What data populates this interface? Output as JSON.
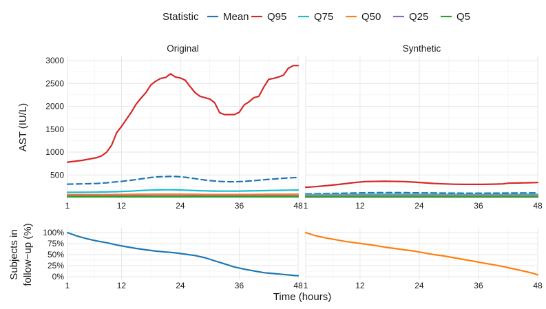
{
  "legend": {
    "title": "Statistic",
    "items": [
      {
        "name": "Mean",
        "color": "#1f77b4"
      },
      {
        "name": "Q95",
        "color": "#d62728"
      },
      {
        "name": "Q75",
        "color": "#17becf"
      },
      {
        "name": "Q50",
        "color": "#ff7f0e"
      },
      {
        "name": "Q25",
        "color": "#9467bd"
      },
      {
        "name": "Q5",
        "color": "#2ca02c"
      }
    ]
  },
  "xlabel": "Time (hours)",
  "chart_data": [
    {
      "type": "line",
      "panel": "Original",
      "title": "Original",
      "ylabel": "AST (IU/L)",
      "xlim": [
        1,
        48
      ],
      "ylim": [
        0,
        3000
      ],
      "xticks": [
        1,
        12,
        24,
        36,
        48
      ],
      "yticks": [
        500,
        1000,
        1500,
        2000,
        2500,
        3000
      ],
      "x": [
        1,
        4,
        7,
        8,
        9,
        10,
        11,
        12,
        14,
        15,
        16,
        17,
        18,
        19,
        20,
        21,
        22,
        23,
        24,
        25,
        26,
        27,
        28,
        29,
        30,
        31,
        32,
        33,
        34,
        35,
        36,
        37,
        38,
        39,
        40,
        41,
        42,
        43,
        44,
        45,
        46,
        47,
        48
      ],
      "series": [
        {
          "name": "Q95",
          "color": "#d62728",
          "dash": false,
          "values": [
            780,
            820,
            880,
            920,
            1000,
            1150,
            1420,
            1560,
            1870,
            2050,
            2180,
            2300,
            2470,
            2550,
            2610,
            2630,
            2710,
            2640,
            2620,
            2570,
            2430,
            2300,
            2220,
            2190,
            2160,
            2080,
            1860,
            1820,
            1820,
            1820,
            1870,
            2030,
            2100,
            2190,
            2220,
            2420,
            2590,
            2610,
            2640,
            2680,
            2830,
            2890,
            2890
          ]
        },
        {
          "name": "Mean",
          "color": "#1f77b4",
          "dash": true,
          "values": [
            300,
            305,
            315,
            322,
            330,
            340,
            350,
            360,
            385,
            400,
            415,
            430,
            445,
            455,
            462,
            465,
            468,
            466,
            460,
            450,
            436,
            420,
            405,
            390,
            378,
            368,
            360,
            355,
            352,
            352,
            355,
            360,
            368,
            376,
            385,
            395,
            405,
            412,
            420,
            428,
            435,
            440,
            445
          ]
        },
        {
          "name": "Q75",
          "color": "#17becf",
          "dash": false,
          "values": [
            120,
            122,
            125,
            128,
            130,
            133,
            136,
            140,
            148,
            155,
            160,
            165,
            170,
            172,
            175,
            176,
            176,
            175,
            172,
            168,
            164,
            160,
            157,
            154,
            151,
            149,
            148,
            147,
            147,
            147,
            148,
            150,
            152,
            154,
            156,
            158,
            160,
            162,
            164,
            166,
            168,
            170,
            172
          ]
        },
        {
          "name": "Q50",
          "color": "#ff7f0e",
          "dash": false,
          "values": [
            70,
            70,
            71,
            71,
            72,
            72,
            73,
            74,
            75,
            76,
            77,
            78,
            79,
            80,
            80,
            80,
            80,
            80,
            79,
            78,
            77,
            76,
            75,
            74,
            74,
            73,
            73,
            73,
            73,
            73,
            73,
            74,
            74,
            75,
            75,
            76,
            76,
            77,
            77,
            78,
            78,
            79,
            79
          ]
        },
        {
          "name": "Q25",
          "color": "#9467bd",
          "dash": false,
          "values": [
            42,
            42,
            42,
            42,
            43,
            43,
            43,
            43,
            44,
            44,
            44,
            45,
            45,
            45,
            45,
            45,
            45,
            45,
            45,
            44,
            44,
            44,
            44,
            43,
            43,
            43,
            43,
            43,
            43,
            43,
            43,
            43,
            43,
            44,
            44,
            44,
            44,
            44,
            44,
            45,
            45,
            45,
            45
          ]
        },
        {
          "name": "Q5",
          "color": "#2ca02c",
          "dash": false,
          "values": [
            22,
            22,
            22,
            22,
            22,
            22,
            22,
            22,
            23,
            23,
            23,
            23,
            23,
            23,
            23,
            23,
            23,
            23,
            23,
            23,
            23,
            23,
            23,
            22,
            22,
            22,
            22,
            22,
            22,
            22,
            22,
            22,
            22,
            22,
            22,
            22,
            22,
            22,
            22,
            23,
            23,
            23,
            23
          ]
        }
      ]
    },
    {
      "type": "line",
      "panel": "Synthetic",
      "title": "Synthetic",
      "ylabel": "AST (IU/L)",
      "xlim": [
        1,
        48
      ],
      "ylim": [
        0,
        3000
      ],
      "xticks": [
        1,
        12,
        24,
        36,
        48
      ],
      "yticks": [
        500,
        1000,
        1500,
        2000,
        2500,
        3000
      ],
      "x": [
        1,
        3,
        5,
        7,
        9,
        11,
        13,
        15,
        17,
        19,
        21,
        23,
        25,
        27,
        29,
        31,
        33,
        35,
        37,
        39,
        41,
        42,
        44,
        46,
        48
      ],
      "series": [
        {
          "name": "Q95",
          "color": "#d62728",
          "dash": false,
          "values": [
            230,
            245,
            265,
            285,
            310,
            335,
            355,
            360,
            362,
            360,
            355,
            345,
            330,
            315,
            305,
            298,
            295,
            295,
            295,
            300,
            305,
            320,
            325,
            330,
            335
          ]
        },
        {
          "name": "Mean",
          "color": "#1f77b4",
          "dash": true,
          "values": [
            85,
            88,
            92,
            97,
            102,
            107,
            111,
            114,
            115,
            115,
            114,
            112,
            110,
            108,
            106,
            104,
            103,
            103,
            103,
            104,
            105,
            106,
            107,
            108,
            110
          ]
        },
        {
          "name": "Q75",
          "color": "#17becf",
          "dash": false,
          "values": [
            70,
            71,
            72,
            73,
            74,
            75,
            75,
            76,
            76,
            76,
            76,
            75,
            75,
            74,
            74,
            73,
            73,
            73,
            73,
            73,
            74,
            74,
            74,
            75,
            75
          ]
        },
        {
          "name": "Q50",
          "color": "#ff7f0e",
          "dash": false,
          "values": [
            45,
            45,
            45,
            46,
            46,
            46,
            46,
            46,
            46,
            46,
            46,
            46,
            46,
            46,
            46,
            46,
            46,
            46,
            46,
            46,
            46,
            46,
            46,
            46,
            46
          ]
        },
        {
          "name": "Q25",
          "color": "#9467bd",
          "dash": false,
          "values": [
            32,
            32,
            32,
            32,
            32,
            32,
            32,
            32,
            32,
            32,
            32,
            32,
            32,
            32,
            32,
            32,
            32,
            32,
            32,
            32,
            32,
            32,
            32,
            32,
            32
          ]
        },
        {
          "name": "Q5",
          "color": "#2ca02c",
          "dash": false,
          "values": [
            18,
            18,
            18,
            18,
            18,
            18,
            18,
            18,
            18,
            18,
            18,
            18,
            18,
            18,
            18,
            18,
            18,
            18,
            18,
            18,
            18,
            18,
            18,
            18,
            18
          ]
        }
      ]
    },
    {
      "type": "line",
      "panel": "Original-followup",
      "ylabel": "Subjects in follow-up (%)",
      "ylabel_lines": [
        "Subjects in",
        "follow−up (%)"
      ],
      "xlim": [
        1,
        48
      ],
      "ylim": [
        0,
        100
      ],
      "xticks": [
        1,
        12,
        24,
        36,
        48
      ],
      "xtick_labels": [
        "1",
        "12",
        "24",
        "36",
        "48"
      ],
      "yticks": [
        0,
        25,
        50,
        75,
        100
      ],
      "ytick_labels": [
        "0%",
        "25%",
        "50%",
        "75%",
        "100%"
      ],
      "x": [
        1,
        3,
        5,
        7,
        9,
        11,
        13,
        15,
        17,
        19,
        21,
        23,
        25,
        27,
        29,
        31,
        33,
        35,
        37,
        39,
        41,
        43,
        45,
        47,
        48
      ],
      "series": [
        {
          "name": "Mean",
          "color": "#1f77b4",
          "dash": false,
          "values": [
            100,
            92,
            86,
            81,
            77,
            72,
            68,
            64,
            61,
            58,
            56,
            54,
            51,
            48,
            43,
            36,
            29,
            22,
            17,
            13,
            9,
            7,
            5,
            3,
            2
          ]
        }
      ]
    },
    {
      "type": "line",
      "panel": "Synthetic-followup",
      "ylabel": "Subjects in follow-up (%)",
      "xlim": [
        1,
        48
      ],
      "ylim": [
        0,
        100
      ],
      "xticks": [
        1,
        12,
        24,
        36,
        48
      ],
      "xtick_labels": [
        "1",
        "12",
        "24",
        "36",
        "48"
      ],
      "yticks": [
        0,
        25,
        50,
        75,
        100
      ],
      "x": [
        1,
        3,
        5,
        7,
        9,
        11,
        13,
        15,
        17,
        19,
        21,
        23,
        25,
        27,
        29,
        31,
        33,
        35,
        37,
        39,
        41,
        43,
        45,
        47,
        48
      ],
      "series": [
        {
          "name": "Q50",
          "color": "#ff7f0e",
          "dash": false,
          "values": [
            100,
            93,
            88,
            84,
            80,
            77,
            74,
            71,
            67,
            64,
            61,
            58,
            54,
            50,
            47,
            43,
            39,
            35,
            31,
            27,
            23,
            18,
            13,
            8,
            4
          ]
        }
      ]
    }
  ]
}
